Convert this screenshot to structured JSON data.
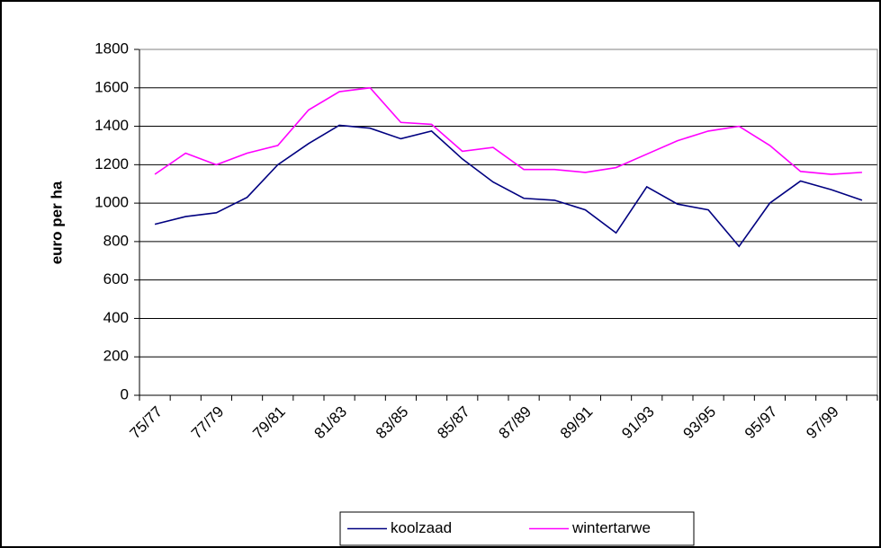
{
  "chart_data": {
    "type": "line",
    "y_label": "euro per ha",
    "categories": [
      "75/77",
      null,
      "77/79",
      null,
      "79/81",
      null,
      "81/83",
      null,
      "83/85",
      null,
      "85/87",
      null,
      "87/89",
      null,
      "89/91",
      null,
      "91/93",
      null,
      "93/95",
      null,
      "95/97",
      null,
      "97/99",
      null
    ],
    "series": [
      {
        "name": "koolzaad",
        "color": "#000080",
        "values": [
          890,
          930,
          950,
          1030,
          1200,
          1310,
          1405,
          1390,
          1335,
          1375,
          1230,
          1110,
          1025,
          1015,
          965,
          845,
          1085,
          995,
          965,
          775,
          1000,
          1115,
          1070,
          1015
        ]
      },
      {
        "name": "wintertarwe",
        "color": "#ff00ff",
        "values": [
          1150,
          1260,
          1200,
          1260,
          1300,
          1485,
          1580,
          1600,
          1420,
          1410,
          1270,
          1290,
          1175,
          1175,
          1160,
          1185,
          1255,
          1325,
          1375,
          1400,
          1300,
          1165,
          1150,
          1160
        ]
      }
    ],
    "ylim": [
      0,
      1800
    ],
    "yticks": [
      0,
      200,
      400,
      600,
      800,
      1000,
      1200,
      1400,
      1600,
      1800
    ],
    "grid": true,
    "legend": "bottom"
  }
}
